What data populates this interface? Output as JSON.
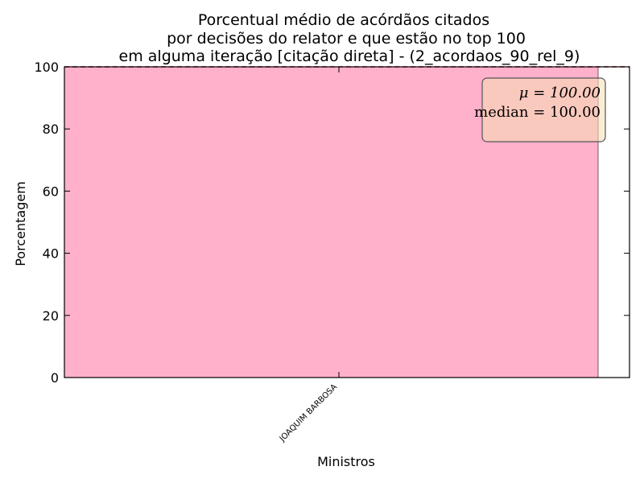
{
  "chart_data": {
    "type": "bar",
    "title_lines": [
      "Porcentual médio de acórdãos citados",
      "por decisões do relator e que estão no top 100",
      "em alguma iteração [citação direta] - (2_acordaos_90_rel_9)"
    ],
    "xlabel": "Ministros",
    "ylabel": "Porcentagem",
    "categories": [
      "JOAQUIM BARBOSA"
    ],
    "values": [
      100.0
    ],
    "ylim": [
      0,
      100
    ],
    "yticks": [
      "0",
      "20",
      "40",
      "60",
      "80",
      "100"
    ],
    "grid": false,
    "bar_color": "#ffb0cb",
    "mean_line_color": "#8b0000",
    "stats": {
      "mu_label": "μ = 100.00",
      "median_label": "median = 100.00"
    },
    "stats_box_color": "#f5deb3",
    "stats_box_position": "top-right"
  }
}
